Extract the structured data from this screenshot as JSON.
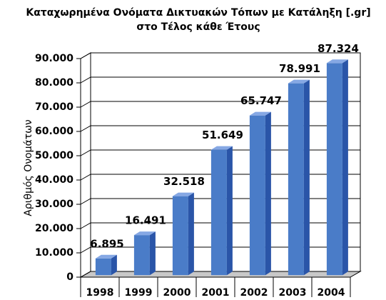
{
  "chart_data": {
    "type": "bar3d",
    "title": [
      "Καταχωρημένα Ονόματα Δικτυακών Τόπων με Κατάληξη [.gr]",
      "στο Τέλος κάθε Έτους"
    ],
    "y_label": "Αριθμός Ονομάτων",
    "categories": [
      "1998",
      "1999",
      "2000",
      "2001",
      "2002",
      "2003",
      "2004"
    ],
    "values": [
      6895,
      16491,
      32518,
      51649,
      65747,
      78991,
      87324
    ],
    "value_labels": [
      "6.895",
      "16.491",
      "32.518",
      "51.649",
      "65.747",
      "78.991",
      "87.324"
    ],
    "color": "#4a7cc8",
    "ylim": [
      0,
      90000
    ],
    "yticks": [
      0,
      {
        "value": 10000,
        "label": "10.000"
      },
      {
        "value": 20000,
        "label": "20.000"
      },
      {
        "value": 30000,
        "label": "30.000"
      },
      {
        "value": 40000,
        "label": "40.000"
      },
      {
        "value": 50000,
        "label": "50.000"
      },
      {
        "value": 60000,
        "label": "60.000"
      },
      {
        "value": 70000,
        "label": "70.000"
      },
      {
        "value": 80000,
        "label": "80.000"
      },
      {
        "value": 90000,
        "label": "90.000"
      }
    ],
    "grid": true
  }
}
